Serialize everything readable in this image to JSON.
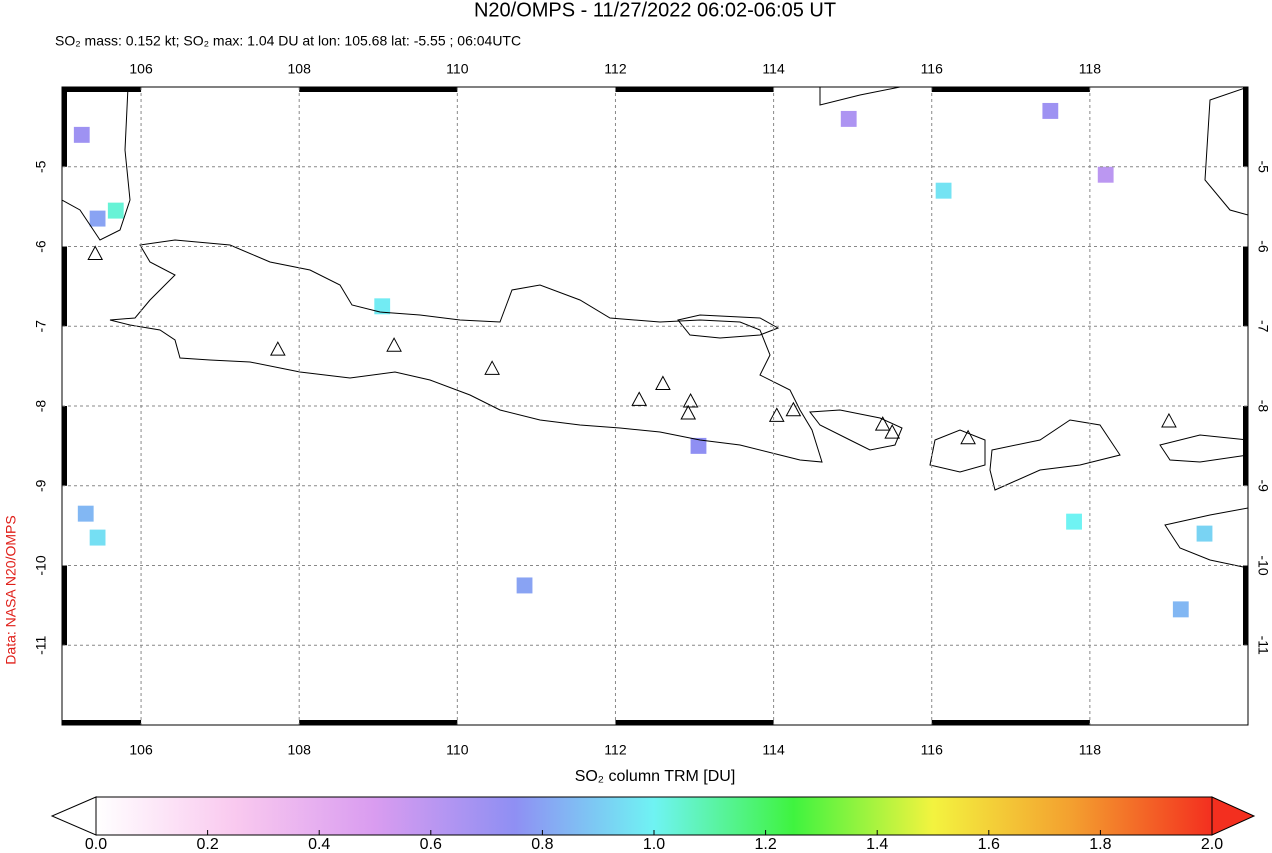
{
  "chart_data": {
    "type": "map",
    "title": "N20/OMPS - 11/27/2022 06:02-06:05 UT",
    "subtitle": "SO₂ mass: 0.152 kt; SO₂ max: 1.04 DU at lon: 105.68 lat: -5.55 ; 06:04UTC",
    "credit": "Data: NASA N20/OMPS",
    "xlim": [
      105,
      120
    ],
    "ylim": [
      -12,
      -4
    ],
    "xticks": [
      106,
      108,
      110,
      112,
      114,
      116,
      118
    ],
    "yticks": [
      -5,
      -6,
      -7,
      -8,
      -9,
      -10,
      -11
    ],
    "grid": true,
    "pixels": {
      "lon": [
        105.68,
        105.3,
        105.45,
        109.05,
        116.15,
        117.8,
        119.45,
        105.45,
        113.05,
        117.5,
        118.2,
        119.15,
        105.25,
        110.85,
        114.95
      ],
      "lat": [
        -5.55,
        -9.35,
        -9.65,
        -6.75,
        -5.3,
        -9.45,
        -9.6,
        -5.65,
        -8.5,
        -4.3,
        -5.1,
        -10.55,
        -4.6,
        -10.25,
        -4.4
      ],
      "values": [
        1.04,
        0.85,
        0.95,
        0.98,
        0.96,
        1.0,
        0.92,
        0.8,
        0.75,
        0.7,
        0.6,
        0.85,
        0.7,
        0.8,
        0.65
      ]
    },
    "volcanoes": {
      "lon": [
        105.42,
        107.73,
        109.2,
        110.44,
        112.3,
        112.6,
        112.95,
        112.92,
        114.04,
        114.25,
        115.38,
        115.5,
        116.46,
        119.0
      ],
      "lat": [
        -6.1,
        -7.3,
        -7.25,
        -7.54,
        -7.93,
        -7.73,
        -7.95,
        -8.1,
        -8.13,
        -8.06,
        -8.24,
        -8.34,
        -8.41,
        -8.2
      ]
    },
    "colorbar": {
      "label": "SO₂ column TRM [DU]",
      "clim": [
        0,
        2
      ],
      "colors": [
        "#ffffff",
        "#f9c9ef",
        "#d99cf0",
        "#8f8ff3",
        "#6ff3f3",
        "#3ff33f",
        "#f3f33f",
        "#f39f2f",
        "#f32f1f"
      ],
      "ticks": [
        {
          "value": 0,
          "label": "0.0"
        },
        {
          "value": 0.2,
          "label": "0.2"
        },
        {
          "value": 0.4,
          "label": "0.4"
        },
        {
          "value": 0.6,
          "label": "0.6"
        },
        {
          "value": 0.8,
          "label": "0.8"
        },
        {
          "value": 1.0,
          "label": "1.0"
        },
        {
          "value": 1.2,
          "label": "1.2"
        },
        {
          "value": 1.4,
          "label": "1.4"
        },
        {
          "value": 1.6,
          "label": "1.6"
        },
        {
          "value": 1.8,
          "label": "1.8"
        },
        {
          "value": 2.0,
          "label": "2.0"
        }
      ]
    }
  }
}
